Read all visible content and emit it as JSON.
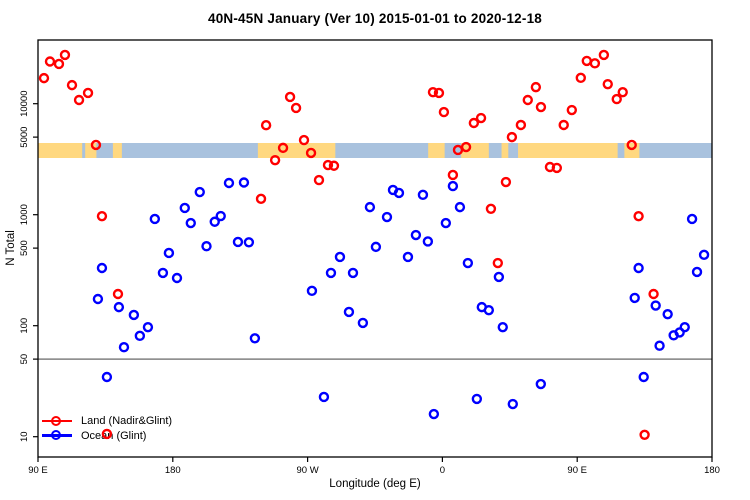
{
  "title": "40N-45N January (Ver 10)   2015-01-01 to 2020-12-18",
  "chart_data": {
    "type": "scatter",
    "title": "40N-45N January (Ver 10)   2015-01-01 to 2020-12-18",
    "xlabel": "Longitude (deg E)",
    "ylabel": "N Total",
    "x_axis": {
      "unit": "deg E (continuous, wraps 90E to 180 twice)",
      "range": [
        90,
        540
      ],
      "ticks": [
        {
          "lon": 90,
          "label": "90 E"
        },
        {
          "lon": 180,
          "label": "180"
        },
        {
          "lon": 270,
          "label": "90 W"
        },
        {
          "lon": 360,
          "label": "0"
        },
        {
          "lon": 450,
          "label": "90 E"
        },
        {
          "lon": 540,
          "label": "180"
        }
      ]
    },
    "y_axis": {
      "scale": "log10",
      "range": [
        6.6,
        37500
      ],
      "ticks": [
        {
          "value": 10000,
          "label": "10000"
        },
        {
          "value": 5000,
          "label": "5000"
        },
        {
          "value": 1000,
          "label": "1000"
        },
        {
          "value": 500,
          "label": "500"
        },
        {
          "value": 100,
          "label": "100"
        },
        {
          "value": 50,
          "label": "50"
        },
        {
          "value": 10,
          "label": "10"
        }
      ]
    },
    "reference_line": {
      "value": 50,
      "color": "#808080"
    },
    "land_ocean_band": {
      "description": "land/ocean strip for 40N-45N drawn across plot near N=3300-4400",
      "value_range": [
        3250,
        4400
      ],
      "land_color": "#FFD880",
      "ocean_color": "#A9C2DE",
      "land_segments_deg_e": [
        [
          90,
          119.5
        ],
        [
          121.5,
          129
        ],
        [
          140,
          146
        ],
        [
          236.8,
          288.5
        ],
        [
          350.5,
          361.5
        ],
        [
          372.5,
          391
        ],
        [
          399.5,
          404
        ],
        [
          410.5,
          477
        ],
        [
          481.5,
          491.5
        ]
      ]
    },
    "legend_position": "bottom-left",
    "series": [
      {
        "name": "Land (Nadir&Glint)",
        "color": "#FF0000",
        "marker": "open-circle",
        "points": [
          [
            98,
            24000
          ],
          [
            104,
            22800
          ],
          [
            108,
            27500
          ],
          [
            94,
            17000
          ],
          [
            112.7,
            14700
          ],
          [
            123.4,
            12500
          ],
          [
            117.4,
            10800
          ],
          [
            128.7,
            4250
          ],
          [
            132.7,
            970
          ],
          [
            143.4,
            193
          ],
          [
            136,
            10.6
          ],
          [
            238.9,
            1390
          ],
          [
            242.3,
            6400
          ],
          [
            248.3,
            3100
          ],
          [
            253.6,
            4000
          ],
          [
            258.3,
            11500
          ],
          [
            262.3,
            9150
          ],
          [
            267.6,
            4700
          ],
          [
            272.3,
            3600
          ],
          [
            277.6,
            2050
          ],
          [
            283.6,
            2800
          ],
          [
            287.6,
            2760
          ],
          [
            353.7,
            12700
          ],
          [
            357.7,
            12500
          ],
          [
            361,
            8400
          ],
          [
            367,
            2280
          ],
          [
            370.4,
            3830
          ],
          [
            375.8,
            4070
          ],
          [
            381,
            6700
          ],
          [
            385.8,
            7430
          ],
          [
            392.4,
            1130
          ],
          [
            397,
            367
          ],
          [
            402.4,
            1970
          ],
          [
            406.4,
            5000
          ],
          [
            412.4,
            6430
          ],
          [
            417,
            10800
          ],
          [
            422.4,
            14100
          ],
          [
            425.8,
            9330
          ],
          [
            431.8,
            2690
          ],
          [
            436.4,
            2640
          ],
          [
            441,
            6430
          ],
          [
            446.4,
            8770
          ],
          [
            452.4,
            17100
          ],
          [
            456.4,
            24300
          ],
          [
            461.8,
            23100
          ],
          [
            467.8,
            27500
          ],
          [
            470.4,
            15000
          ],
          [
            476.4,
            11000
          ],
          [
            480.4,
            12700
          ],
          [
            486.4,
            4250
          ],
          [
            491,
            970
          ],
          [
            501,
            193
          ],
          [
            495,
            10.4
          ]
        ]
      },
      {
        "name": "Ocean (Glint)",
        "color": "#0000FF",
        "marker": "open-circle",
        "points": [
          [
            132.7,
            331
          ],
          [
            130,
            174
          ],
          [
            144,
            147
          ],
          [
            154,
            125
          ],
          [
            163.4,
            97
          ],
          [
            158,
            81
          ],
          [
            147.4,
            64
          ],
          [
            136,
            34.5
          ],
          [
            168,
            915
          ],
          [
            173.4,
            299
          ],
          [
            177.4,
            452
          ],
          [
            182.8,
            269
          ],
          [
            188,
            1150
          ],
          [
            192,
            841
          ],
          [
            198,
            1600
          ],
          [
            202.5,
            520
          ],
          [
            208,
            864
          ],
          [
            212,
            973
          ],
          [
            217.5,
            1930
          ],
          [
            227.5,
            1950
          ],
          [
            223.5,
            568
          ],
          [
            230.8,
            564
          ],
          [
            234.8,
            77
          ],
          [
            272.9,
            206
          ],
          [
            280.9,
            22.8
          ],
          [
            285.6,
            299
          ],
          [
            291.6,
            416
          ],
          [
            297.6,
            133
          ],
          [
            300.3,
            299
          ],
          [
            306.9,
            106
          ],
          [
            311.6,
            1170
          ],
          [
            315.6,
            513
          ],
          [
            323,
            953
          ],
          [
            327,
            1670
          ],
          [
            331,
            1570
          ],
          [
            337,
            416
          ],
          [
            342.3,
            656
          ],
          [
            347,
            1510
          ],
          [
            350.3,
            574
          ],
          [
            354.3,
            16
          ],
          [
            362.3,
            841
          ],
          [
            367,
            1810
          ],
          [
            371.7,
            1170
          ],
          [
            377,
            367
          ],
          [
            383,
            21.9
          ],
          [
            386.3,
            147
          ],
          [
            391,
            138
          ],
          [
            397.7,
            275
          ],
          [
            400.3,
            97
          ],
          [
            407,
            19.7
          ],
          [
            425.7,
            29.8
          ],
          [
            488.4,
            178
          ],
          [
            491,
            331
          ],
          [
            494.4,
            34.5
          ],
          [
            502.4,
            152
          ],
          [
            505,
            66
          ],
          [
            510.4,
            127
          ],
          [
            514.4,
            82
          ],
          [
            518.4,
            87
          ],
          [
            521.8,
            97
          ],
          [
            526.7,
            915
          ],
          [
            534.7,
            435
          ],
          [
            530,
            305
          ]
        ]
      }
    ]
  },
  "legend": {
    "land_label": "Land (Nadir&Glint)",
    "ocean_label": "Ocean (Glint)"
  },
  "colors": {
    "land_series": "#FF0000",
    "ocean_series": "#0000FF",
    "band_land": "#FFD880",
    "band_ocean": "#A9C2DE",
    "reference_line": "#808080",
    "axis": "#000000"
  }
}
